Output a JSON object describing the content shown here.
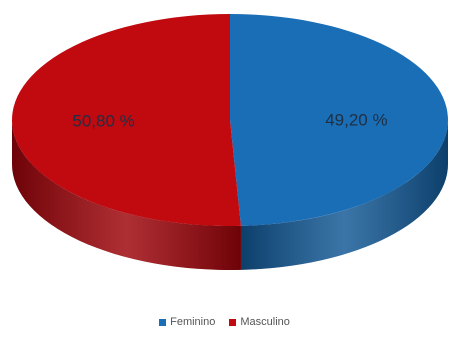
{
  "chart_data": {
    "type": "pie",
    "style": "3d",
    "legend_position": "bottom",
    "slices": [
      {
        "label": "Feminino",
        "value": 49.2,
        "value_label": "49,20 %",
        "color": "#1a6eb6",
        "side_color": "#0d3f6b"
      },
      {
        "label": "Masculino",
        "value": 50.8,
        "value_label": "50,80  %",
        "color": "#c00a10",
        "side_color": "#6e0408"
      }
    ]
  }
}
